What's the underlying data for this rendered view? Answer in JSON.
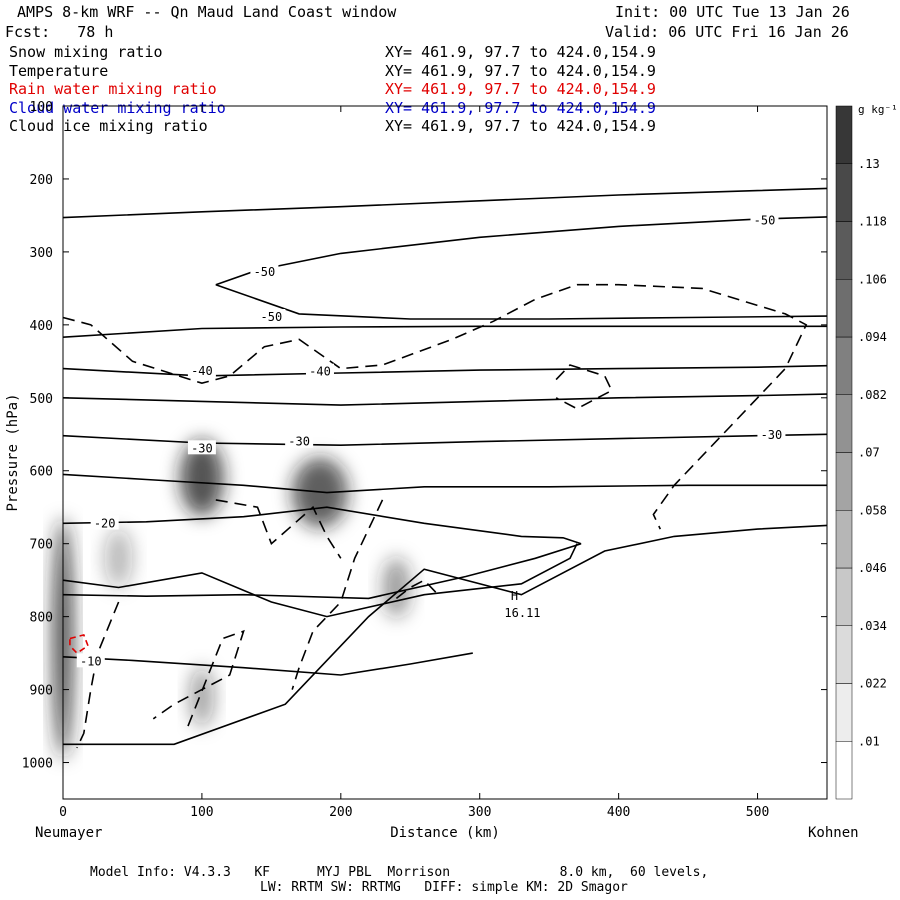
{
  "header": {
    "title": "AMPS 8-km WRF -- Qn Maud Land Coast window",
    "fcst": "Fcst:   78 h",
    "init": "Init: 00 UTC Tue 13 Jan 26",
    "valid": "Valid: 06 UTC Fri 16 Jan 26"
  },
  "fields": [
    {
      "name": "Snow mixing ratio",
      "xy": "XY= 461.9, 97.7 to 424.0,154.9",
      "color": "#000000"
    },
    {
      "name": "Temperature",
      "xy": "XY= 461.9, 97.7 to 424.0,154.9",
      "color": "#000000"
    },
    {
      "name": "Rain water mixing ratio",
      "xy": "XY= 461.9, 97.7 to 424.0,154.9",
      "color": "#e00000"
    },
    {
      "name": "Cloud water mixing ratio",
      "xy": "XY= 461.9, 97.7 to 424.0,154.9",
      "color": "#0000c8"
    },
    {
      "name": "Cloud ice mixing ratio",
      "xy": "XY= 461.9, 97.7 to 424.0,154.9",
      "color": "#000000"
    }
  ],
  "footer": {
    "line1": "Model Info: V4.3.3   KF      MYJ PBL  Morrison              8.0 km,  60 levels,",
    "line2": "LW: RRTM SW: RRTMG   DIFF: simple KM: 2D Smagor"
  },
  "chart_data": {
    "type": "contour",
    "xlabel": "Distance (km)",
    "ylabel": "Pressure (hPa)",
    "x_left_label": "Neumayer",
    "x_right_label": "Kohnen",
    "xlim": [
      0,
      550
    ],
    "ylim": [
      1050,
      100
    ],
    "x_ticks": [
      0,
      100,
      200,
      300,
      400,
      500
    ],
    "y_ticks": [
      100,
      200,
      300,
      400,
      500,
      600,
      700,
      800,
      900,
      1000
    ],
    "colorbar": {
      "unit": "g kg⁻¹",
      "levels": [
        0.01,
        0.022,
        0.034,
        0.046,
        0.058,
        0.07,
        0.082,
        0.094,
        0.106,
        0.118,
        0.13
      ],
      "level_labels": [
        ".01",
        ".022",
        ".034",
        ".046",
        ".058",
        ".07",
        ".082",
        ".094",
        ".106",
        ".118",
        ".13"
      ]
    },
    "temperature_labels": [
      {
        "x": 145,
        "p": 330,
        "text": "-50"
      },
      {
        "x": 150,
        "p": 392,
        "text": "-50"
      },
      {
        "x": 505,
        "p": 260,
        "text": "-50"
      },
      {
        "x": 100,
        "p": 466,
        "text": "-40"
      },
      {
        "x": 185,
        "p": 467,
        "text": "-40"
      },
      {
        "x": 100,
        "p": 572,
        "text": "-30"
      },
      {
        "x": 170,
        "p": 563,
        "text": "-30"
      },
      {
        "x": 510,
        "p": 554,
        "text": "-30"
      },
      {
        "x": 30,
        "p": 675,
        "text": "-20"
      },
      {
        "x": 20,
        "p": 864,
        "text": "-10"
      }
    ],
    "high_marker": {
      "x": 325,
      "p": 780,
      "symbol": "H",
      "value": "16.11"
    },
    "temperature_contours": [
      {
        "x": [
          0,
          100,
          200,
          300,
          400,
          500,
          550
        ],
        "p": [
          253,
          245,
          238,
          230,
          222,
          216,
          213
        ]
      },
      {
        "x": [
          110,
          140,
          200,
          300,
          400,
          500,
          550
        ],
        "p": [
          345,
          325,
          302,
          280,
          265,
          255,
          252
        ]
      },
      {
        "x": [
          110,
          170,
          250,
          350,
          450,
          550
        ],
        "p": [
          345,
          385,
          392,
          392,
          390,
          388
        ]
      },
      {
        "x": [
          0,
          100,
          200,
          300,
          400,
          500,
          550
        ],
        "p": [
          417,
          405,
          403,
          402,
          402,
          402,
          402
        ]
      },
      {
        "x": [
          0,
          100,
          200,
          300,
          400,
          500,
          550
        ],
        "p": [
          460,
          470,
          466,
          462,
          460,
          458,
          456
        ]
      },
      {
        "x": [
          0,
          100,
          200,
          300,
          400,
          500,
          550
        ],
        "p": [
          500,
          505,
          510,
          505,
          500,
          497,
          495
        ]
      },
      {
        "x": [
          0,
          100,
          200,
          300,
          400,
          500,
          550
        ],
        "p": [
          552,
          562,
          565,
          560,
          556,
          552,
          550
        ]
      },
      {
        "x": [
          0,
          60,
          130,
          190,
          260,
          350,
          450,
          550
        ],
        "p": [
          605,
          612,
          620,
          630,
          622,
          622,
          620,
          620
        ]
      },
      {
        "x": [
          0,
          60,
          130,
          190,
          260,
          330,
          360,
          373
        ],
        "p": [
          672,
          670,
          663,
          650,
          672,
          690,
          692,
          700
        ]
      },
      {
        "x": [
          0,
          60,
          130,
          220,
          290,
          340,
          373
        ],
        "p": [
          770,
          772,
          770,
          775,
          745,
          720,
          700
        ]
      },
      {
        "x": [
          0,
          40,
          100,
          150,
          190,
          260,
          330,
          365,
          370
        ],
        "p": [
          750,
          760,
          740,
          780,
          800,
          770,
          755,
          720,
          700
        ]
      },
      {
        "x": [
          0,
          50,
          130,
          200,
          250,
          295
        ],
        "p": [
          855,
          860,
          870,
          880,
          865,
          850
        ]
      },
      {
        "x": [
          0,
          80,
          160,
          220,
          260,
          330,
          390,
          440,
          500,
          550
        ],
        "p": [
          975,
          975,
          920,
          800,
          735,
          770,
          710,
          690,
          680,
          675
        ]
      }
    ],
    "dashed_contours": [
      {
        "x": [
          0,
          20,
          50,
          100,
          120,
          145,
          170,
          200,
          230,
          280,
          310,
          340,
          370,
          400,
          460,
          520,
          535,
          520,
          480,
          440,
          425,
          430
        ],
        "p": [
          390,
          400,
          450,
          480,
          470,
          430,
          420,
          460,
          455,
          420,
          395,
          365,
          345,
          345,
          350,
          385,
          400,
          460,
          540,
          620,
          660,
          680
        ]
      },
      {
        "x": [
          110,
          140,
          150,
          180,
          190,
          200
        ],
        "p": [
          640,
          650,
          700,
          650,
          690,
          720
        ]
      },
      {
        "x": [
          230,
          210,
          200,
          180,
          170,
          165
        ],
        "p": [
          640,
          720,
          780,
          820,
          870,
          900
        ]
      },
      {
        "x": [
          40,
          25,
          20,
          15,
          10
        ],
        "p": [
          780,
          850,
          900,
          960,
          980
        ]
      },
      {
        "x": [
          90,
          115,
          130,
          120,
          100,
          80,
          65
        ],
        "p": [
          950,
          830,
          820,
          880,
          900,
          920,
          940
        ]
      },
      {
        "x": [
          355,
          365,
          390,
          395,
          370,
          355
        ],
        "p": [
          475,
          455,
          470,
          490,
          515,
          500
        ]
      },
      {
        "x": [
          240,
          250,
          260,
          270
        ],
        "p": [
          775,
          760,
          750,
          770
        ]
      }
    ],
    "rain_contour": {
      "x": [
        5,
        15,
        18,
        10,
        5
      ],
      "p": [
        830,
        825,
        840,
        850,
        840
      ]
    }
  }
}
